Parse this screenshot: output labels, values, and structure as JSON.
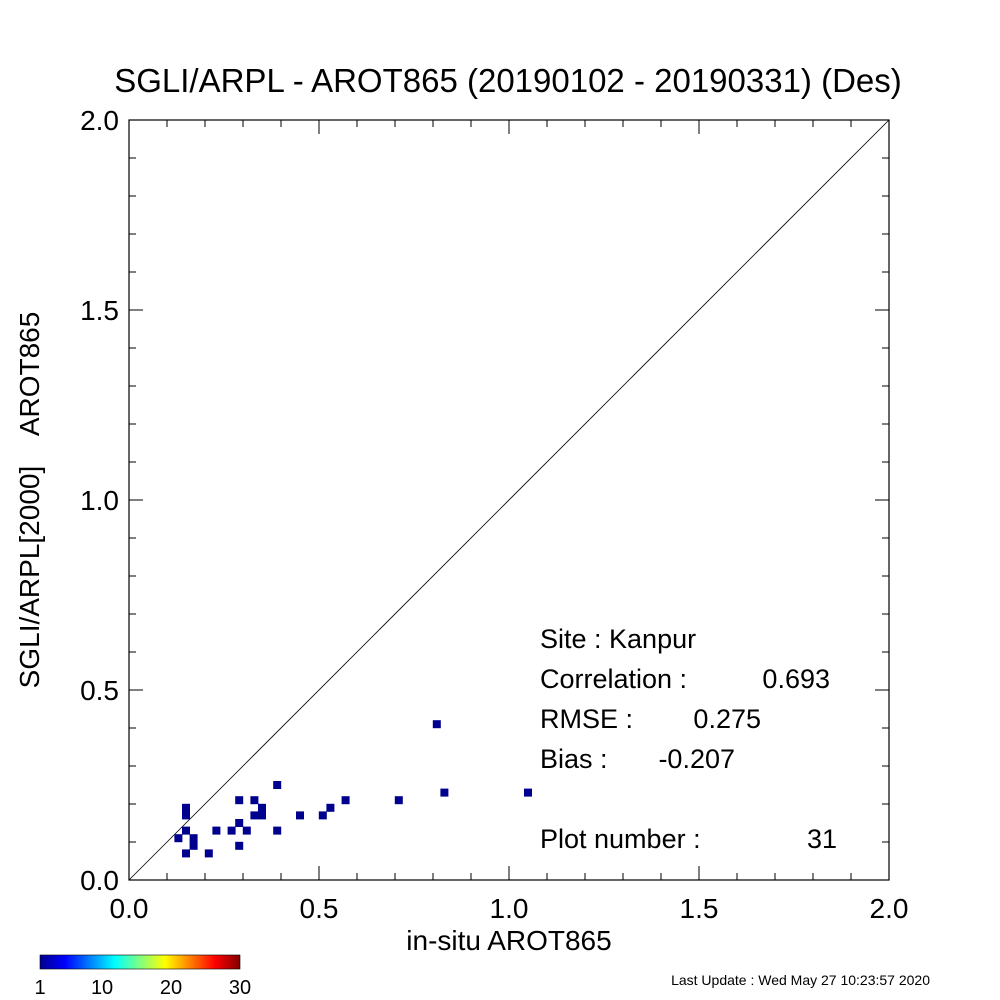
{
  "chart_data": {
    "type": "scatter",
    "title": "SGLI/ARPL - AROT865 (20190102 - 20190331) (Des)",
    "xlabel": "in-situ AROT865",
    "ylabel": "SGLI/ARPL[2000]    AROT865",
    "xlim": [
      0.0,
      2.0
    ],
    "ylim": [
      0.0,
      2.0
    ],
    "x_ticks": [
      "0.0",
      "0.5",
      "1.0",
      "1.5",
      "2.0"
    ],
    "y_ticks": [
      "0.0",
      "0.5",
      "1.0",
      "1.5",
      "2.0"
    ],
    "reference_line": "1:1",
    "grid": false,
    "point_color": "#00008f",
    "points": [
      {
        "x": 0.13,
        "y": 0.11
      },
      {
        "x": 0.15,
        "y": 0.19
      },
      {
        "x": 0.15,
        "y": 0.17
      },
      {
        "x": 0.15,
        "y": 0.13
      },
      {
        "x": 0.15,
        "y": 0.07
      },
      {
        "x": 0.17,
        "y": 0.11
      },
      {
        "x": 0.17,
        "y": 0.09
      },
      {
        "x": 0.21,
        "y": 0.07
      },
      {
        "x": 0.23,
        "y": 0.13
      },
      {
        "x": 0.27,
        "y": 0.13
      },
      {
        "x": 0.29,
        "y": 0.21
      },
      {
        "x": 0.29,
        "y": 0.15
      },
      {
        "x": 0.29,
        "y": 0.09
      },
      {
        "x": 0.31,
        "y": 0.13
      },
      {
        "x": 0.33,
        "y": 0.21
      },
      {
        "x": 0.33,
        "y": 0.17
      },
      {
        "x": 0.35,
        "y": 0.19
      },
      {
        "x": 0.35,
        "y": 0.17
      },
      {
        "x": 0.39,
        "y": 0.25
      },
      {
        "x": 0.39,
        "y": 0.13
      },
      {
        "x": 0.45,
        "y": 0.17
      },
      {
        "x": 0.51,
        "y": 0.17
      },
      {
        "x": 0.53,
        "y": 0.19
      },
      {
        "x": 0.57,
        "y": 0.21
      },
      {
        "x": 0.71,
        "y": 0.21
      },
      {
        "x": 0.81,
        "y": 0.41
      },
      {
        "x": 0.83,
        "y": 0.23
      },
      {
        "x": 1.05,
        "y": 0.23
      }
    ],
    "stats": {
      "site": "Site : Kanpur",
      "correlation_label": "Correlation :",
      "correlation_value": "0.693",
      "rmse_label": "RMSE :",
      "rmse_value": "0.275",
      "bias_label": "Bias :",
      "bias_value": "-0.207",
      "plot_number_label": "Plot number :",
      "plot_number_value": "31"
    },
    "colorbar": {
      "colormap": "jet",
      "range": [
        1,
        30
      ],
      "tick_labels": [
        "1",
        "10",
        "20",
        "30"
      ]
    }
  },
  "footer": {
    "last_update": "Last Update : Wed May 27 10:23:57 2020"
  }
}
